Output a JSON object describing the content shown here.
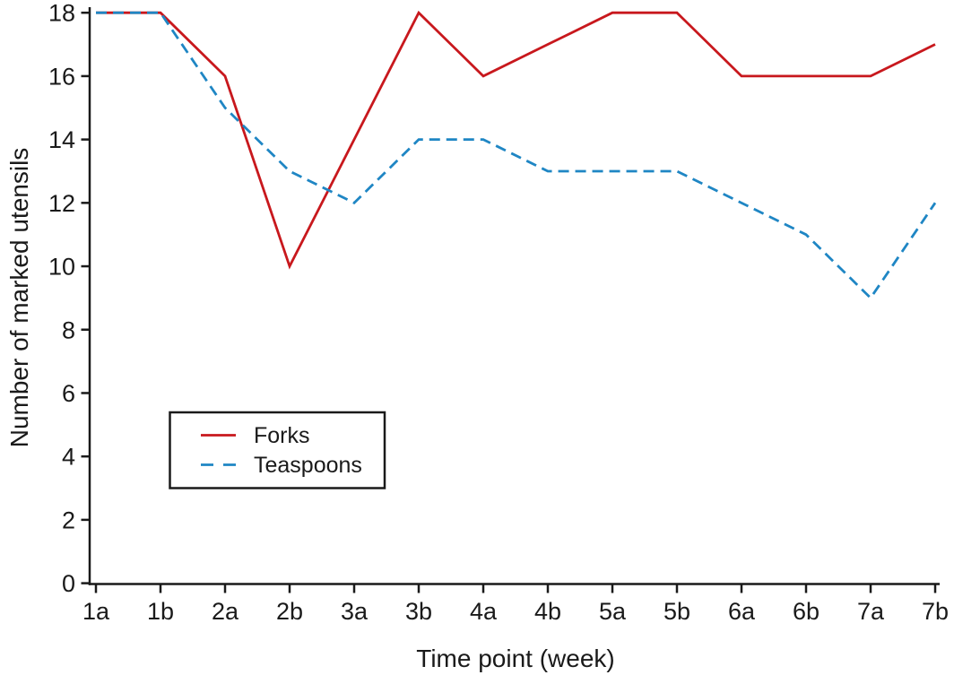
{
  "chart_data": {
    "type": "line",
    "title": "",
    "xlabel": "Time point (week)",
    "ylabel": "Number of marked utensils",
    "categories": [
      "1a",
      "1b",
      "2a",
      "2b",
      "3a",
      "3b",
      "4a",
      "4b",
      "5a",
      "5b",
      "6a",
      "6b",
      "7a",
      "7b"
    ],
    "series": [
      {
        "name": "Forks",
        "color": "#c8181d",
        "line_style": "solid",
        "values": [
          18,
          18,
          16,
          10,
          14,
          18,
          16,
          17,
          18,
          18,
          16,
          16,
          16,
          17
        ]
      },
      {
        "name": "Teaspoons",
        "color": "#1f86c4",
        "line_style": "dashed",
        "values": [
          18,
          18,
          15,
          13,
          12,
          14,
          14,
          13,
          13,
          13,
          12,
          11,
          9,
          12
        ]
      }
    ],
    "ylim": [
      0,
      18
    ],
    "yticks": [
      0,
      2,
      4,
      6,
      8,
      10,
      12,
      14,
      16,
      18
    ],
    "grid": false,
    "legend_position": "inside-lower-left",
    "axis_color": "#1a1a1a",
    "background_color": "#ffffff"
  }
}
